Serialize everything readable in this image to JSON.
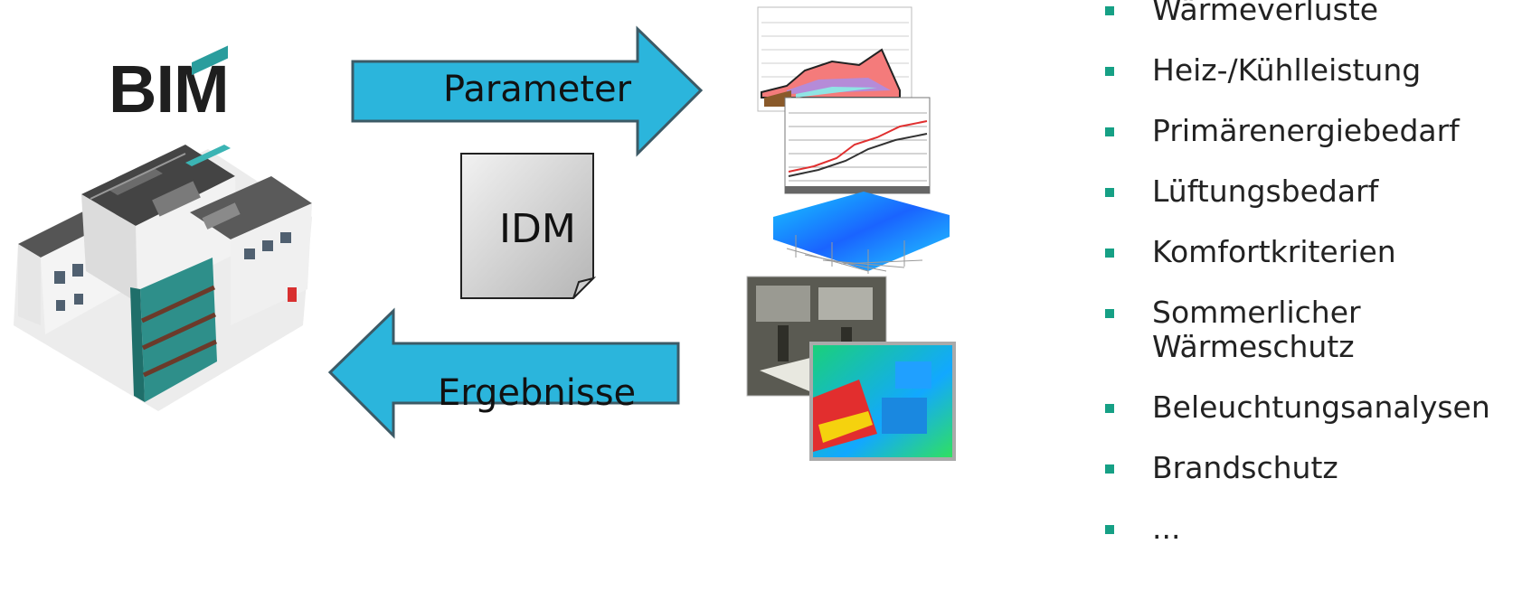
{
  "bim": {
    "title": "BIM"
  },
  "arrows": {
    "top_label": "Parameter",
    "bottom_label": "Ergebnisse"
  },
  "document": {
    "label": "IDM"
  },
  "results": {
    "items": [
      "Wärmeverluste",
      "Heiz-/Kühlleistung",
      "Primärenergiebedarf",
      "Lüftungsbedarf",
      "Komfortkriterien",
      "Sommerlicher Wärmeschutz",
      "Beleuchtungsanalysen",
      "Brandschutz",
      "..."
    ],
    "bullet_color": "#16a085"
  },
  "colors": {
    "arrow_fill": "#2bb5dc",
    "arrow_stroke": "#3c5a66",
    "doc_fill": "#d9d9d9"
  }
}
